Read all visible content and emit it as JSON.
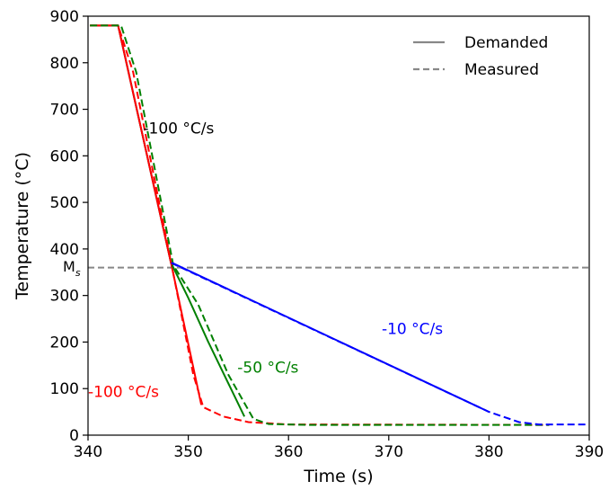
{
  "chart_data": {
    "type": "line",
    "title": "",
    "xlabel": "Time (s)",
    "ylabel": "Temperature (°C)",
    "xlim": [
      340,
      390
    ],
    "ylim": [
      0,
      900
    ],
    "xticks": [
      340,
      350,
      360,
      370,
      380,
      390
    ],
    "yticks": [
      0,
      100,
      200,
      300,
      400,
      500,
      600,
      700,
      800,
      900
    ],
    "grid": false,
    "legend": {
      "placement": "top-right",
      "entries": [
        {
          "label": "Demanded",
          "style": "solid",
          "color": "#888888"
        },
        {
          "label": "Measured",
          "style": "dashed",
          "color": "#888888"
        }
      ]
    },
    "reference_lines": [
      {
        "label": "M",
        "subscript": "s",
        "y": 360,
        "style": "dashed",
        "color": "#888888"
      }
    ],
    "annotations": [
      {
        "text": "-100 °C/s",
        "x": 345.5,
        "y": 648,
        "color": "#000000"
      },
      {
        "text": "-10 °C/s",
        "x": 369.3,
        "y": 217,
        "color": "#0000ff"
      },
      {
        "text": "-50 °C/s",
        "x": 354.9,
        "y": 134,
        "color": "#008000"
      },
      {
        "text": "-100 °C/s",
        "x": 340,
        "y": 82,
        "color": "#ff0000"
      }
    ],
    "series": [
      {
        "color": "#000000",
        "style": "solid",
        "x": [
          340.2,
          343.0,
          348.3
        ],
        "y": [
          880,
          880,
          368
        ]
      },
      {
        "color": "#ff0000",
        "style": "solid",
        "x": [
          340.2,
          343.0,
          348.3,
          351.3
        ],
        "y": [
          880,
          880,
          368,
          65
        ]
      },
      {
        "color": "#ff0000",
        "style": "dashed",
        "x": [
          340.2,
          343.0,
          344.5,
          348.3,
          350.5,
          351.5,
          353.5,
          356.0,
          360.0,
          386.0
        ],
        "y": [
          880,
          880,
          780,
          370,
          130,
          60,
          40,
          28,
          23,
          22
        ]
      },
      {
        "color": "#008000",
        "style": "solid",
        "x": [
          348.4,
          350.0,
          352.0,
          355.6
        ],
        "y": [
          365,
          295,
          200,
          40
        ]
      },
      {
        "color": "#008000",
        "style": "dashed",
        "x": [
          340.2,
          343.3,
          344.8,
          348.5,
          351.0,
          354.0,
          356.5,
          358.0,
          362.0,
          386.0
        ],
        "y": [
          880,
          880,
          780,
          365,
          280,
          130,
          35,
          24,
          22,
          22
        ]
      },
      {
        "color": "#0000ff",
        "style": "solid",
        "x": [
          348.4,
          380.0
        ],
        "y": [
          370,
          50
        ]
      },
      {
        "color": "#0000ff",
        "style": "dashed",
        "x": [
          348.3,
          380.0,
          383.0,
          385.0,
          390.0
        ],
        "y": [
          370,
          50,
          28,
          23,
          23
        ]
      }
    ]
  }
}
